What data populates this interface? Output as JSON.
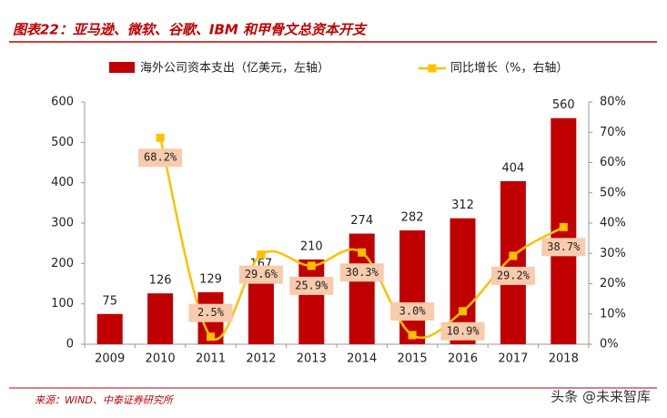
{
  "chart_data": {
    "type": "bar-line",
    "title": "图表22：亚马逊、微软、谷歌、IBM 和甲骨文总资本开支",
    "source": "来源：WIND、中泰证券研究所",
    "watermark": "头条 @未来智库",
    "categories": [
      "2009",
      "2010",
      "2011",
      "2012",
      "2013",
      "2014",
      "2015",
      "2016",
      "2017",
      "2018"
    ],
    "series": [
      {
        "name": "海外公司资本支出（亿美元，左轴）",
        "color": "#c00000",
        "type": "bar",
        "values": [
          75,
          126,
          129,
          167,
          210,
          274,
          282,
          312,
          404,
          560
        ]
      },
      {
        "name": "同比增长（%，右轴）",
        "color": "#ffc000",
        "type": "line",
        "axis": "y2",
        "values": [
          null,
          68.2,
          2.5,
          29.6,
          25.9,
          30.3,
          3.0,
          10.9,
          29.2,
          38.7
        ],
        "value_labels": [
          null,
          "68.2%",
          "2.5%",
          "29.6%",
          "25.9%",
          "30.3%",
          "3.0%",
          "10.9%",
          "29.2%",
          "38.7%"
        ]
      }
    ],
    "ylim": [
      0,
      600
    ],
    "yticks": [
      0,
      100,
      200,
      300,
      400,
      500,
      600
    ],
    "y2lim": [
      0,
      80
    ],
    "y2ticks": [
      {
        "value": 0,
        "label": "0%"
      },
      {
        "value": 10,
        "label": "10%"
      },
      {
        "value": 20,
        "label": "20%"
      },
      {
        "value": 30,
        "label": "30%"
      },
      {
        "value": 40,
        "label": "40%"
      },
      {
        "value": 50,
        "label": "50%"
      },
      {
        "value": 60,
        "label": "60%"
      },
      {
        "value": 70,
        "label": "70%"
      },
      {
        "value": 80,
        "label": "80%"
      }
    ]
  }
}
